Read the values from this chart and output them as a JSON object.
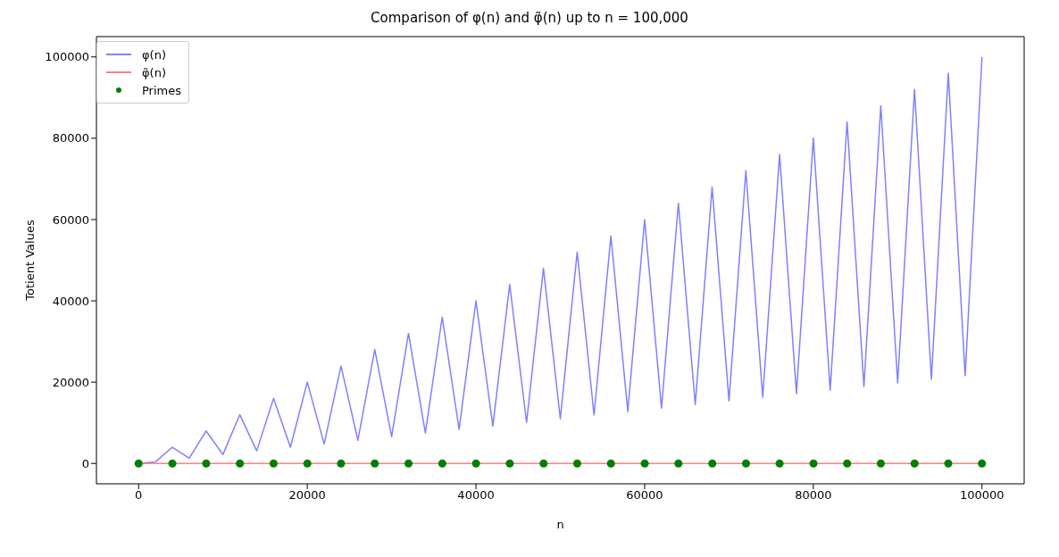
{
  "chart_data": {
    "type": "line",
    "title": "Comparison of φ(n) and φ̃(n) up to n = 100,000",
    "xlabel": "n",
    "ylabel": "Totient Values",
    "xlim": [
      -5000,
      105000
    ],
    "xticks": [
      0,
      20000,
      40000,
      60000,
      80000,
      100000
    ],
    "ylim": [
      -5000,
      105000
    ],
    "yticks": [
      0,
      20000,
      40000,
      60000,
      80000,
      100000
    ],
    "grid": false,
    "legend": "top left",
    "series": [
      {
        "name": "φ(n)",
        "color": "#8080ff",
        "marker": "none",
        "x": [
          0,
          2000,
          4000,
          6000,
          8000,
          10000,
          12000,
          14000,
          16000,
          18000,
          20000,
          22000,
          24000,
          26000,
          28000,
          30000,
          32000,
          34000,
          36000,
          38000,
          40000,
          42000,
          44000,
          46000,
          48000,
          50000,
          52000,
          54000,
          56000,
          58000,
          60000,
          62000,
          64000,
          66000,
          68000,
          70000,
          72000,
          74000,
          76000,
          78000,
          80000,
          82000,
          84000,
          86000,
          88000,
          90000,
          92000,
          94000,
          96000,
          98000,
          100000
        ],
        "values": [
          0,
          400,
          4000,
          1300,
          8000,
          2200,
          12000,
          3100,
          16000,
          4000,
          20000,
          4800,
          24000,
          5700,
          28000,
          6600,
          32000,
          7500,
          36000,
          8400,
          40000,
          9200,
          44000,
          10100,
          48000,
          11000,
          52000,
          11900,
          56000,
          12800,
          60000,
          13600,
          64000,
          14500,
          68000,
          15400,
          72000,
          16300,
          76000,
          17200,
          80000,
          18000,
          84000,
          18900,
          88000,
          19800,
          92000,
          20700,
          96000,
          21600,
          100000
        ]
      },
      {
        "name": "φ̃(n)",
        "color": "#ff8080",
        "marker": "none",
        "x": [
          0,
          100000
        ],
        "values": [
          0,
          0
        ]
      },
      {
        "name": "Primes",
        "type": "scatter",
        "color": "#008000",
        "marker": "circle",
        "x": [
          2,
          4001,
          8009,
          12007,
          16001,
          20011,
          24001,
          28001,
          32003,
          36007,
          40009,
          44007,
          48017,
          52009,
          56003,
          60013,
          64007,
          68023,
          72019,
          76001,
          80021,
          84011,
          88001,
          92003,
          96001,
          99991
        ],
        "values": [
          0,
          0,
          0,
          0,
          0,
          0,
          0,
          0,
          0,
          0,
          0,
          0,
          0,
          0,
          0,
          0,
          0,
          0,
          0,
          0,
          0,
          0,
          0,
          0,
          0,
          0
        ]
      }
    ]
  }
}
